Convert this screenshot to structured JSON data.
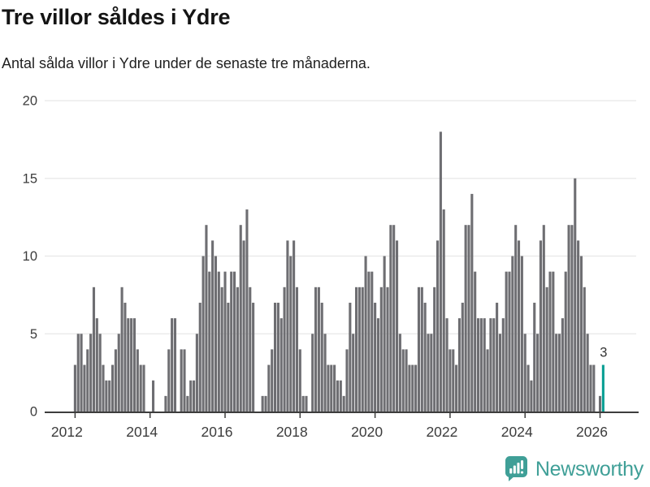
{
  "header": {
    "title": "Tre villor såldes i Ydre",
    "subtitle": "Antal sålda villor i Ydre under de senaste tre månaderna."
  },
  "chart_data": {
    "type": "bar",
    "title": "Tre villor såldes i Ydre",
    "subtitle": "Antal sålda villor i Ydre under de senaste tre månaderna.",
    "x_start": "2012-01",
    "frequency": "monthly",
    "x_tick_labels": [
      "2012",
      "2014",
      "2016",
      "2018",
      "2020",
      "2022",
      "2024",
      "2026"
    ],
    "y_ticks": [
      0,
      5,
      10,
      15,
      20
    ],
    "ylim": [
      0,
      20
    ],
    "grid": "horizontal",
    "legend_position": "none",
    "values": [
      3,
      5,
      5,
      3,
      4,
      5,
      8,
      6,
      5,
      3,
      2,
      2,
      3,
      4,
      5,
      8,
      7,
      6,
      6,
      6,
      4,
      3,
      3,
      0,
      0,
      2,
      0,
      0,
      0,
      1,
      4,
      6,
      6,
      0,
      4,
      4,
      1,
      2,
      2,
      5,
      7,
      10,
      12,
      9,
      11,
      10,
      9,
      8,
      9,
      7,
      9,
      9,
      8,
      12,
      11,
      13,
      8,
      7,
      0,
      0,
      1,
      1,
      3,
      4,
      7,
      7,
      6,
      8,
      11,
      10,
      11,
      8,
      4,
      1,
      1,
      0,
      5,
      8,
      8,
      7,
      5,
      3,
      3,
      3,
      2,
      2,
      1,
      4,
      7,
      5,
      8,
      8,
      8,
      10,
      9,
      9,
      7,
      6,
      8,
      10,
      8,
      12,
      12,
      11,
      5,
      4,
      4,
      3,
      3,
      3,
      8,
      8,
      7,
      5,
      5,
      8,
      11,
      18,
      13,
      6,
      4,
      4,
      3,
      6,
      7,
      12,
      12,
      14,
      9,
      6,
      6,
      6,
      4,
      6,
      6,
      7,
      5,
      6,
      9,
      9,
      10,
      12,
      11,
      10,
      5,
      3,
      2,
      7,
      5,
      11,
      12,
      8,
      9,
      9,
      5,
      5,
      6,
      9,
      12,
      12,
      15,
      11,
      10,
      8,
      5,
      3,
      3,
      0,
      1,
      3
    ],
    "highlight_last": true,
    "last_value_label": "3",
    "colors": {
      "bar": "#6e6e72",
      "highlight": "#0a9f94",
      "grid": "#e7e7e7",
      "axis": "#3d3d3d",
      "tick_text": "#3c3c3c",
      "annotation_text": "#333333"
    }
  },
  "footer": {
    "brand": "Newsworthy",
    "logo_icon": "bar-chart-speech-bubble-icon",
    "logo_color": "#3f9f97"
  }
}
